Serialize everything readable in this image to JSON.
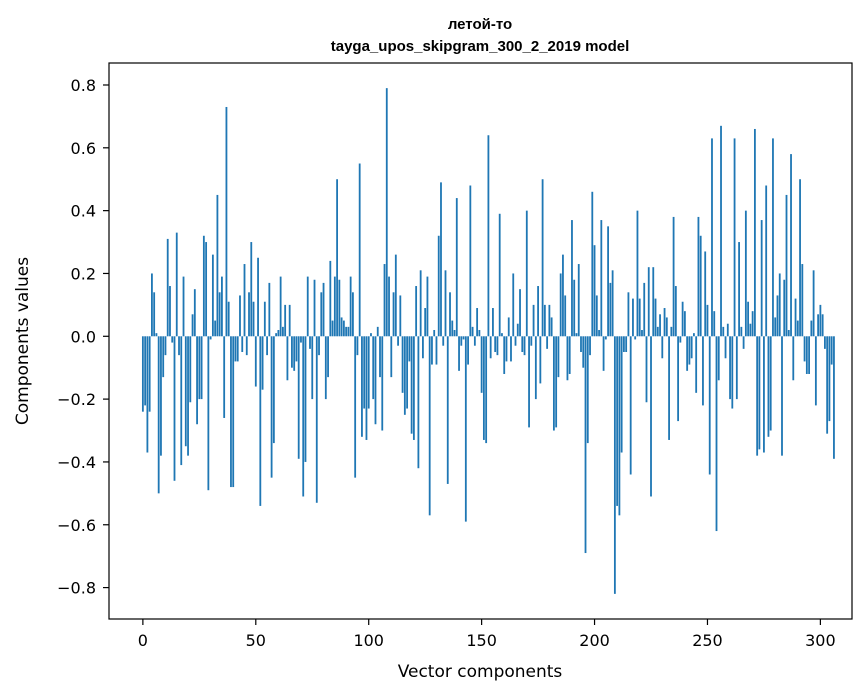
{
  "chart_data": {
    "type": "bar",
    "title": "летой-то",
    "subtitle": "tayga_upos_skipgram_300_2_2019 model",
    "xlabel": "Vector components",
    "ylabel": "Components values",
    "xlim": [
      -15,
      314
    ],
    "ylim": [
      -0.9,
      0.87
    ],
    "xticks": [
      0,
      50,
      100,
      150,
      200,
      250,
      300
    ],
    "xtick_labels": [
      "0",
      "50",
      "100",
      "150",
      "200",
      "250",
      "300"
    ],
    "yticks": [
      -0.8,
      -0.6,
      -0.4,
      -0.2,
      0.0,
      0.2,
      0.4,
      0.6,
      0.8
    ],
    "ytick_labels": [
      "−0.8",
      "−0.6",
      "−0.4",
      "−0.2",
      "0.0",
      "0.2",
      "0.4",
      "0.6",
      "0.8"
    ],
    "grid": false,
    "bar_color": "#1f77b4",
    "values": [
      -0.24,
      -0.22,
      -0.37,
      -0.24,
      0.2,
      0.14,
      0.01,
      -0.5,
      -0.38,
      -0.13,
      -0.06,
      0.31,
      0.16,
      -0.02,
      -0.46,
      0.33,
      -0.06,
      -0.41,
      0.19,
      -0.35,
      -0.38,
      -0.21,
      0.07,
      0.15,
      -0.28,
      -0.2,
      -0.2,
      0.32,
      0.3,
      -0.49,
      -0.01,
      0.26,
      0.05,
      0.45,
      0.14,
      0.19,
      -0.26,
      0.73,
      0.11,
      -0.48,
      -0.48,
      -0.08,
      -0.08,
      0.13,
      -0.05,
      0.23,
      -0.06,
      0.14,
      0.3,
      0.11,
      -0.16,
      0.25,
      -0.54,
      -0.17,
      0.11,
      -0.06,
      0.17,
      -0.45,
      -0.34,
      0.01,
      0.02,
      0.19,
      0.03,
      0.1,
      -0.14,
      0.1,
      -0.1,
      -0.11,
      -0.08,
      -0.39,
      -0.02,
      -0.51,
      -0.4,
      0.19,
      -0.04,
      -0.2,
      0.18,
      -0.53,
      -0.06,
      0.14,
      0.17,
      -0.2,
      -0.13,
      0.24,
      0.05,
      0.19,
      0.5,
      0.18,
      0.06,
      0.05,
      0.03,
      0.03,
      0.19,
      0.14,
      -0.45,
      -0.06,
      0.55,
      -0.32,
      -0.23,
      -0.33,
      -0.23,
      0.01,
      -0.2,
      -0.28,
      0.03,
      -0.13,
      -0.3,
      0.23,
      0.79,
      0.19,
      -0.13,
      0.14,
      0.26,
      -0.03,
      0.13,
      -0.18,
      -0.25,
      -0.23,
      -0.08,
      -0.31,
      -0.33,
      0.16,
      -0.42,
      0.21,
      -0.07,
      0.09,
      0.19,
      -0.57,
      -0.09,
      0.02,
      -0.09,
      0.32,
      0.49,
      -0.03,
      0.21,
      -0.47,
      0.14,
      0.05,
      0.02,
      0.44,
      -0.11,
      -0.03,
      -0.01,
      -0.59,
      -0.09,
      0.48,
      0.03,
      -0.03,
      0.09,
      0.02,
      -0.18,
      -0.33,
      -0.34,
      0.64,
      -0.07,
      0.09,
      -0.05,
      -0.06,
      0.39,
      0.01,
      -0.12,
      -0.08,
      0.06,
      -0.08,
      0.2,
      -0.03,
      0.04,
      0.15,
      -0.05,
      -0.06,
      0.4,
      -0.29,
      -0.03,
      0.1,
      -0.2,
      0.16,
      -0.15,
      0.5,
      0.1,
      -0.04,
      0.1,
      0.06,
      -0.3,
      -0.29,
      -0.13,
      0.2,
      0.26,
      0.13,
      -0.14,
      -0.12,
      0.37,
      0.18,
      0.01,
      0.23,
      -0.05,
      -0.1,
      -0.69,
      -0.34,
      -0.06,
      0.46,
      0.29,
      0.13,
      0.02,
      0.37,
      -0.11,
      -0.01,
      0.35,
      0.17,
      0.21,
      -0.82,
      -0.54,
      -0.57,
      -0.37,
      -0.05,
      -0.05,
      0.14,
      -0.44,
      0.12,
      -0.01,
      0.4,
      0.12,
      0.02,
      0.17,
      -0.21,
      0.22,
      -0.51,
      0.22,
      0.12,
      0.03,
      0.07,
      -0.07,
      0.09,
      0.06,
      -0.33,
      0.03,
      0.38,
      0.16,
      -0.27,
      -0.02,
      0.11,
      0.08,
      -0.11,
      -0.09,
      -0.07,
      0.01,
      -0.18,
      0.38,
      0.32,
      -0.22,
      0.27,
      0.1,
      -0.44,
      0.63,
      0.08,
      -0.62,
      -0.14,
      0.67,
      0.03,
      -0.07,
      0.04,
      -0.2,
      -0.23,
      0.63,
      -0.2,
      0.3,
      0.03,
      -0.04,
      0.4,
      0.11,
      0.04,
      0.08,
      0.66,
      -0.38,
      -0.36,
      0.37,
      -0.37,
      0.48,
      -0.32,
      -0.3,
      0.63,
      0.06,
      0.13,
      0.2,
      -0.38,
      0.18,
      0.45,
      0.02,
      0.58,
      -0.14,
      0.12,
      0.05,
      0.5,
      0.23,
      -0.08,
      -0.12,
      -0.12,
      0.05,
      0.21,
      -0.22,
      0.07,
      0.1,
      0.07,
      -0.04,
      -0.31,
      -0.27,
      -0.09,
      -0.39
    ]
  }
}
